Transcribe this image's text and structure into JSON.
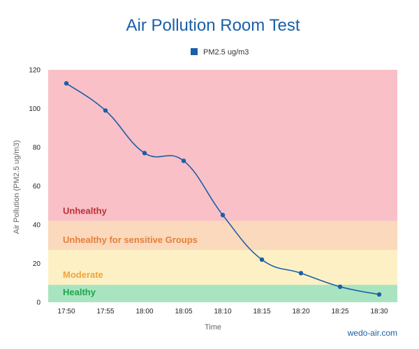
{
  "chart_data": {
    "type": "line",
    "title": "Air Pollution Room Test",
    "xlabel": "Time",
    "ylabel": "Air Pollution (PM2.5 ug/m3)",
    "ylim": [
      0,
      120
    ],
    "yticks": [
      0,
      20,
      40,
      60,
      80,
      100,
      120
    ],
    "categories": [
      "17:50",
      "17:55",
      "18:00",
      "18:05",
      "18:10",
      "18:15",
      "18:20",
      "18:25",
      "18:30"
    ],
    "series": [
      {
        "name": "PM2.5 ug/m3",
        "color": "#1a5fa8",
        "values": [
          113,
          99,
          77,
          73,
          45,
          22,
          15,
          8,
          4
        ]
      }
    ],
    "legend_position": "top-center",
    "grid": false,
    "zones": [
      {
        "label": "Healthy",
        "from": 0,
        "to": 9,
        "fill": "#a9e4c0",
        "text_color": "#1aa64b"
      },
      {
        "label": "Moderate",
        "from": 9,
        "to": 27,
        "fill": "#fdf0c4",
        "text_color": "#f0a43a"
      },
      {
        "label": "Unhealthy for sensitive Groups",
        "from": 27,
        "to": 42,
        "fill": "#fad9bc",
        "text_color": "#e57f3a"
      },
      {
        "label": "Unhealthy",
        "from": 42,
        "to": 120,
        "fill": "#f9c0c7",
        "text_color": "#b83237"
      }
    ]
  },
  "credit": "wedo-air.com"
}
